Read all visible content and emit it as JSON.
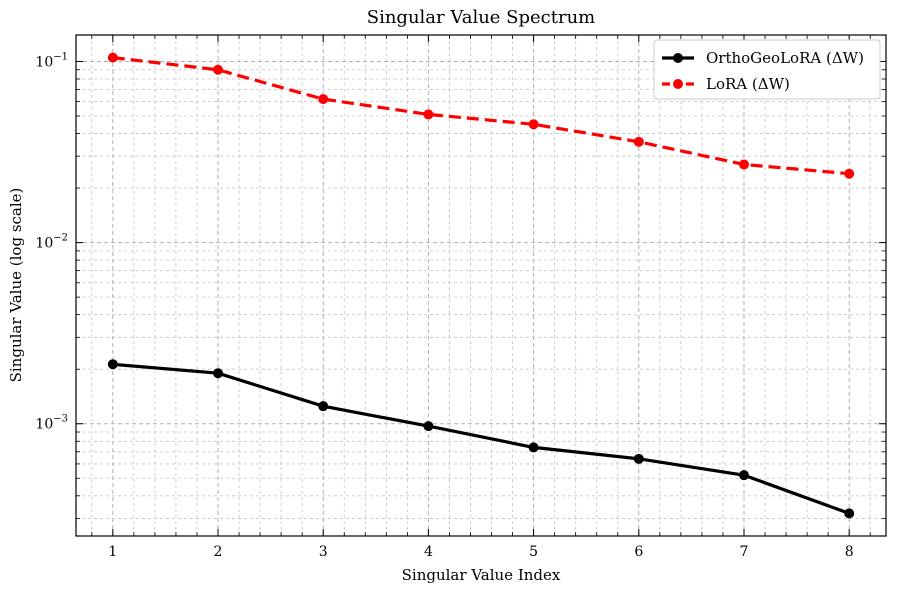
{
  "chart_data": {
    "type": "line",
    "title": "Singular Value Spectrum",
    "xlabel": "Singular Value Index",
    "ylabel": "Singular Value (log scale)",
    "yscale": "log",
    "x": [
      1,
      2,
      3,
      4,
      5,
      6,
      7,
      8
    ],
    "xlim": [
      0.65,
      8.35
    ],
    "ylim": [
      0.00024,
      0.14
    ],
    "x_ticks": [
      "1",
      "2",
      "3",
      "4",
      "5",
      "6",
      "7",
      "8"
    ],
    "y_ticks": [
      {
        "value": 0.001,
        "base": "10",
        "exp": "−3"
      },
      {
        "value": 0.01,
        "base": "10",
        "exp": "−2"
      },
      {
        "value": 0.1,
        "base": "10",
        "exp": "−1"
      }
    ],
    "grid": true,
    "legend_position": "top-right",
    "series": [
      {
        "name": "OrthoGeoLoRA (ΔW)",
        "color": "#000000",
        "linestyle": "solid",
        "values": [
          0.00213,
          0.0019,
          0.00125,
          0.00097,
          0.00074,
          0.00064,
          0.00052,
          0.00032
        ]
      },
      {
        "name": "LoRA (ΔW)",
        "color": "#ff0000",
        "linestyle": "dashed",
        "values": [
          0.105,
          0.09,
          0.062,
          0.051,
          0.045,
          0.036,
          0.027,
          0.024
        ]
      }
    ]
  }
}
